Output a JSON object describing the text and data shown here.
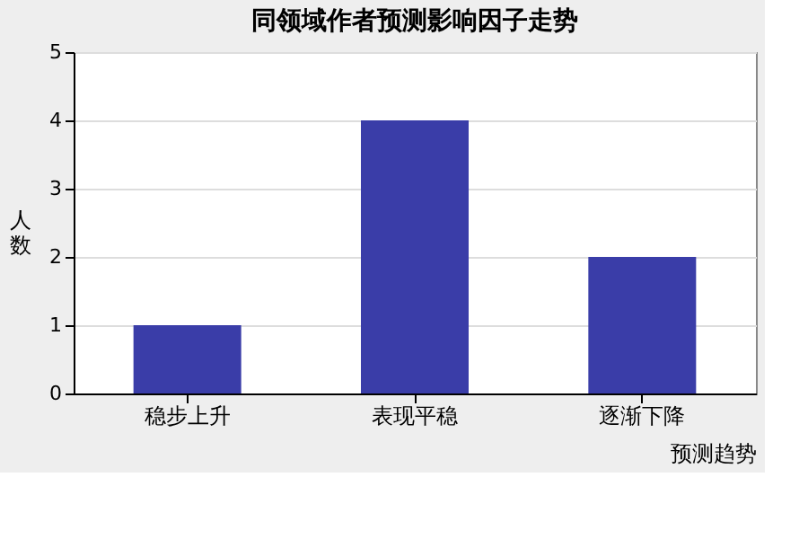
{
  "chart_data": {
    "type": "bar",
    "title": "同领域作者预测影响因子走势",
    "xlabel": "预测趋势",
    "ylabel": "人数",
    "categories": [
      "稳步上升",
      "表现平稳",
      "逐渐下降"
    ],
    "values": [
      1,
      4,
      2
    ],
    "color": "#3a3da8",
    "ylim": [
      0,
      5
    ],
    "yticks": [
      0,
      1,
      2,
      3,
      4,
      5
    ],
    "grid": "y"
  }
}
